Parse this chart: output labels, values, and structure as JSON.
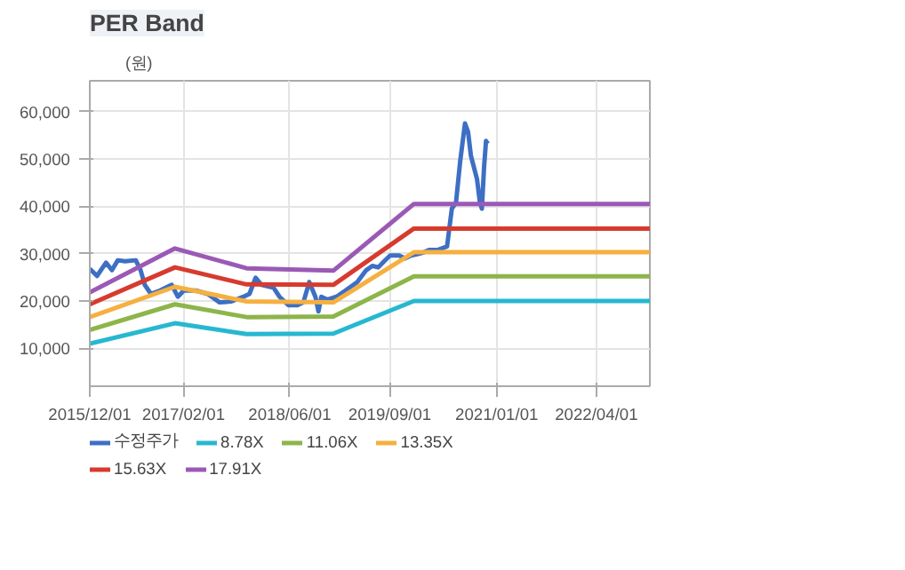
{
  "chart_data": {
    "type": "line",
    "title": "PER Band",
    "ylabel": "(원)",
    "xlim": [
      "2015-12-01",
      "2022-12-01"
    ],
    "xticks": [
      {
        "value": "2015-12-01",
        "label": "2015/12/01"
      },
      {
        "value": "2017-02-01",
        "label": "2017/02/01"
      },
      {
        "value": "2018-06-01",
        "label": "2018/06/01"
      },
      {
        "value": "2019-09-01",
        "label": "2019/09/01"
      },
      {
        "value": "2021-01-01",
        "label": "2021/01/01"
      },
      {
        "value": "2022-04-01",
        "label": "2022/04/01"
      }
    ],
    "ylim": [
      2000,
      66500
    ],
    "yticks": [
      {
        "value": 10000,
        "label": "10,000"
      },
      {
        "value": 20000,
        "label": "20,000"
      },
      {
        "value": 30000,
        "label": "30,000"
      },
      {
        "value": 40000,
        "label": "40,000"
      },
      {
        "value": 50000,
        "label": "50,000"
      },
      {
        "value": 60000,
        "label": "60,000"
      }
    ],
    "grid": true,
    "legend": "bottom",
    "marker": "none",
    "line_style": "solid",
    "series": [
      {
        "name": "수정주가",
        "color": "#3d6fc4",
        "x": [
          "2015-12-01",
          "2016-01-03",
          "2016-02-13",
          "2016-03-11",
          "2016-04-07",
          "2016-05-10",
          "2016-06-28",
          "2016-07-20",
          "2016-08-08",
          "2016-09-05",
          "2016-10-16",
          "2016-12-09",
          "2017-01-06",
          "2017-02-02",
          "2017-03-29",
          "2017-05-22",
          "2017-07-16",
          "2017-09-08",
          "2017-11-02",
          "2017-11-29",
          "2017-12-27",
          "2018-01-23",
          "2018-03-19",
          "2018-04-15",
          "2018-05-26",
          "2018-07-06",
          "2018-08-02",
          "2018-08-29",
          "2018-09-26",
          "2018-10-10",
          "2018-10-23",
          "2018-11-20",
          "2018-12-31",
          "2019-02-10",
          "2019-04-05",
          "2019-05-16",
          "2019-06-13",
          "2019-07-10",
          "2019-08-06",
          "2019-09-02",
          "2019-10-13",
          "2019-11-10",
          "2019-12-07",
          "2020-01-03",
          "2020-01-31",
          "2020-02-27",
          "2020-04-08",
          "2020-05-19",
          "2020-06-10",
          "2020-06-29",
          "2020-07-18",
          "2020-08-09",
          "2020-08-23",
          "2020-09-05",
          "2020-10-03",
          "2020-10-16",
          "2020-10-25",
          "2020-11-04",
          "2020-11-13",
          "2020-11-21"
        ],
        "values": [
          26800,
          25300,
          28100,
          26500,
          28600,
          28400,
          28600,
          26500,
          23400,
          21500,
          22200,
          23400,
          20900,
          22200,
          22200,
          21500,
          19700,
          19900,
          20900,
          21500,
          24900,
          23400,
          22800,
          20900,
          19100,
          19100,
          19700,
          24000,
          20900,
          17800,
          20900,
          20300,
          20900,
          22200,
          24000,
          26500,
          27400,
          27100,
          28400,
          29600,
          29600,
          29000,
          29600,
          29900,
          30200,
          30800,
          30800,
          31500,
          39500,
          40800,
          49500,
          57500,
          55700,
          50700,
          45700,
          40800,
          39500,
          48200,
          53800,
          53200
        ]
      },
      {
        "name": "8.78X",
        "color": "#27b8d0",
        "x": [
          "2015-12-01",
          "2016-12-24",
          "2017-11-16",
          "2018-12-17",
          "2019-12-20",
          "2022-12-01"
        ],
        "values": [
          11000,
          15300,
          13000,
          13100,
          20000,
          20000
        ]
      },
      {
        "name": "11.06X",
        "color": "#8db54a",
        "x": [
          "2015-12-01",
          "2016-12-24",
          "2017-11-16",
          "2018-12-17",
          "2019-12-20",
          "2022-12-01"
        ],
        "values": [
          13900,
          19300,
          16600,
          16700,
          25200,
          25200
        ]
      },
      {
        "name": "13.35X",
        "color": "#f5b040",
        "x": [
          "2015-12-01",
          "2016-12-24",
          "2017-11-16",
          "2018-12-17",
          "2019-12-20",
          "2022-12-01"
        ],
        "values": [
          16600,
          23000,
          19900,
          19700,
          30300,
          30300
        ]
      },
      {
        "name": "15.63X",
        "color": "#d63b2e",
        "x": [
          "2015-12-01",
          "2016-12-24",
          "2017-11-16",
          "2018-12-17",
          "2019-12-20",
          "2022-12-01"
        ],
        "values": [
          19300,
          27100,
          23500,
          23400,
          35300,
          35300
        ]
      },
      {
        "name": "17.91X",
        "color": "#9b59b6",
        "x": [
          "2015-12-01",
          "2016-12-24",
          "2017-11-16",
          "2018-12-17",
          "2019-12-20",
          "2022-12-01"
        ],
        "values": [
          21800,
          31100,
          26900,
          26400,
          40500,
          40500
        ]
      }
    ]
  }
}
